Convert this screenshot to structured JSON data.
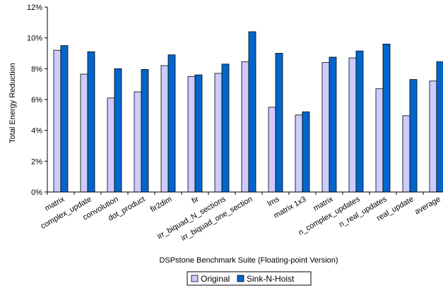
{
  "chart_data": {
    "type": "bar",
    "title": "",
    "xlabel": "DSPstone Benchmark Suite (Floating-point Version)",
    "ylabel": "Total Energy Reduction",
    "ylim": [
      0,
      12
    ],
    "yticks": [
      0,
      2,
      4,
      6,
      8,
      10,
      12
    ],
    "ytick_suffix": "%",
    "grid": false,
    "legend_position": "bottom-center",
    "categories": [
      "matrix",
      "complex_update",
      "convolution",
      "dot_product",
      "fir2dim",
      "fir",
      "irr_biquad_N_sections",
      "irr_biquad_one_section",
      "lms",
      "matrix 1x3",
      "matrix",
      "n_complex_updates",
      "n_real_updates",
      "real_update",
      "average"
    ],
    "series": [
      {
        "name": "Original",
        "color": "#ccccff",
        "values": [
          9.2,
          7.65,
          6.1,
          6.5,
          8.2,
          7.5,
          7.7,
          8.45,
          5.5,
          5.0,
          8.4,
          8.7,
          6.7,
          4.95,
          7.2
        ]
      },
      {
        "name": "Sink-N-Hoist",
        "color": "#0066cc",
        "values": [
          9.5,
          9.1,
          8.0,
          7.95,
          8.9,
          7.6,
          8.3,
          10.4,
          9.0,
          5.2,
          8.75,
          9.15,
          9.6,
          7.3,
          8.45
        ]
      }
    ]
  }
}
